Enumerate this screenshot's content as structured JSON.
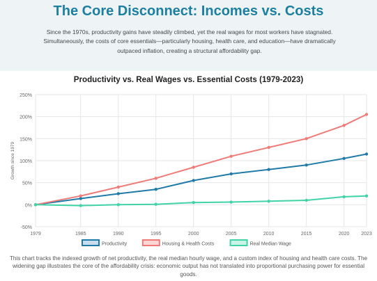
{
  "header": {
    "title": "The Core Disconnect: Incomes vs. Costs",
    "intro": "Since the 1970s, productivity gains have steadily climbed, yet the real wages for most workers have stagnated. Simultaneously, the costs of core essentials—particularly housing, health care, and education—have dramatically outpaced inflation, creating a structural affordability gap."
  },
  "chart_data": {
    "type": "line",
    "title": "Productivity vs. Real Wages vs. Essential Costs (1979-2023)",
    "xlabel": "",
    "ylabel": "Growth since 1979",
    "x": [
      1979,
      1985,
      1990,
      1995,
      2000,
      2005,
      2010,
      2015,
      2020,
      2023
    ],
    "xtick_labels": [
      "1979",
      "1985",
      "1990",
      "1995",
      "2000",
      "2005",
      "2010",
      "2015",
      "2020",
      "2023"
    ],
    "ylim": [
      -50,
      250
    ],
    "yticks": [
      -50,
      0,
      50,
      100,
      150,
      200,
      250
    ],
    "ytick_labels": [
      "-50%",
      "0%",
      "50%",
      "100%",
      "150%",
      "200%",
      "250%"
    ],
    "grid": true,
    "legend_position": "bottom",
    "series": [
      {
        "name": "Productivity",
        "color": "#1f7aa8",
        "fill": "#c8dded",
        "values": [
          0,
          14,
          25,
          35,
          55,
          70,
          80,
          90,
          105,
          115
        ]
      },
      {
        "name": "Housing & Health Costs",
        "color": "#ee7b78",
        "fill": "#fbd6d5",
        "values": [
          0,
          20,
          40,
          60,
          85,
          110,
          130,
          150,
          180,
          205
        ]
      },
      {
        "name": "Real Median Wage",
        "color": "#3fd3a6",
        "fill": "#c9f3e6",
        "values": [
          0,
          -2,
          0,
          1,
          5,
          6,
          8,
          10,
          18,
          20
        ]
      }
    ]
  },
  "footer": {
    "caption": "This chart tracks the indexed growth of net productivity, the real median hourly wage, and a custom index of housing and health care costs. The widening gap illustrates the core of the affordability crisis: economic output has not translated into proportional purchasing power for essential goods."
  }
}
